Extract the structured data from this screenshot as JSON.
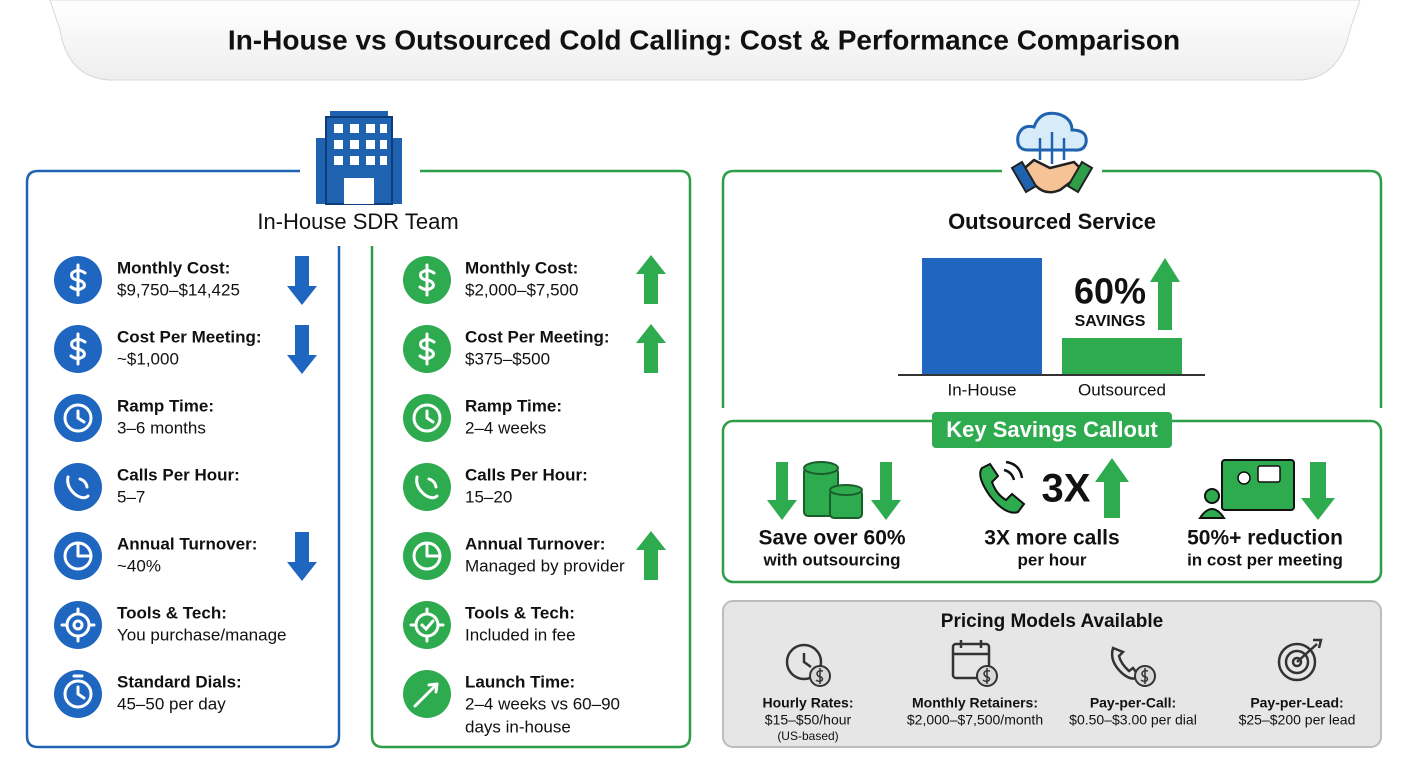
{
  "header": {
    "title": "In-House vs Outsourced Cold Calling: Cost & Performance Comparison"
  },
  "in_house": {
    "title": "In-House SDR Team",
    "items": [
      {
        "label": "Monthly Cost:",
        "value": "$9,750–$14,425"
      },
      {
        "label": "Cost Per Meeting:",
        "value": "~$1,000"
      },
      {
        "label": "Ramp Time:",
        "value": "3–6 months"
      },
      {
        "label": "Calls Per Hour:",
        "value": "5–7"
      },
      {
        "label": "Annual Turnover:",
        "value": "~40%"
      },
      {
        "label": "Tools & Tech:",
        "value": "You purchase/manage"
      },
      {
        "label": "Standard Dials:",
        "value": "45–50 per day"
      }
    ]
  },
  "outsourced": {
    "items": [
      {
        "label": "Monthly Cost:",
        "value": "$2,000–$7,500"
      },
      {
        "label": "Cost Per Meeting:",
        "value": "$375–$500"
      },
      {
        "label": "Ramp Time:",
        "value": "2–4 weeks"
      },
      {
        "label": "Calls Per Hour:",
        "value": "15–20"
      },
      {
        "label": "Annual Turnover:",
        "value": "Managed by provider"
      },
      {
        "label": "Tools & Tech:",
        "value": "Included in fee"
      },
      {
        "label": "Launch Time:",
        "value": [
          "2–4 weeks vs 60–90",
          "days in-house"
        ]
      }
    ]
  },
  "outsourced_service": {
    "title": "Outsourced Service",
    "bar_labels": [
      "In-House",
      "Outsourced"
    ],
    "badge": "60%",
    "badge_sub": "SAVINGS"
  },
  "callout": {
    "title": "Key Savings Callout",
    "items": [
      {
        "headline": "Save over 60%",
        "sub": "with outsourcing"
      },
      {
        "badge": "3X",
        "headline": "3X more calls",
        "sub": "per hour"
      },
      {
        "headline": "50%+ reduction",
        "sub": "in cost per meeting"
      }
    ]
  },
  "pricing": {
    "title": "Pricing Models Available",
    "models": [
      {
        "label": "Hourly Rates:",
        "value": "$15–$50/hour",
        "note": "(US-based)"
      },
      {
        "label": "Monthly Retainers:",
        "value": "$2,000–$7,500/month"
      },
      {
        "label": "Pay-per-Call:",
        "value": "$0.50–$3.00 per dial"
      },
      {
        "label": "Pay-per-Lead:",
        "value": "$25–$200 per lead"
      }
    ]
  }
}
